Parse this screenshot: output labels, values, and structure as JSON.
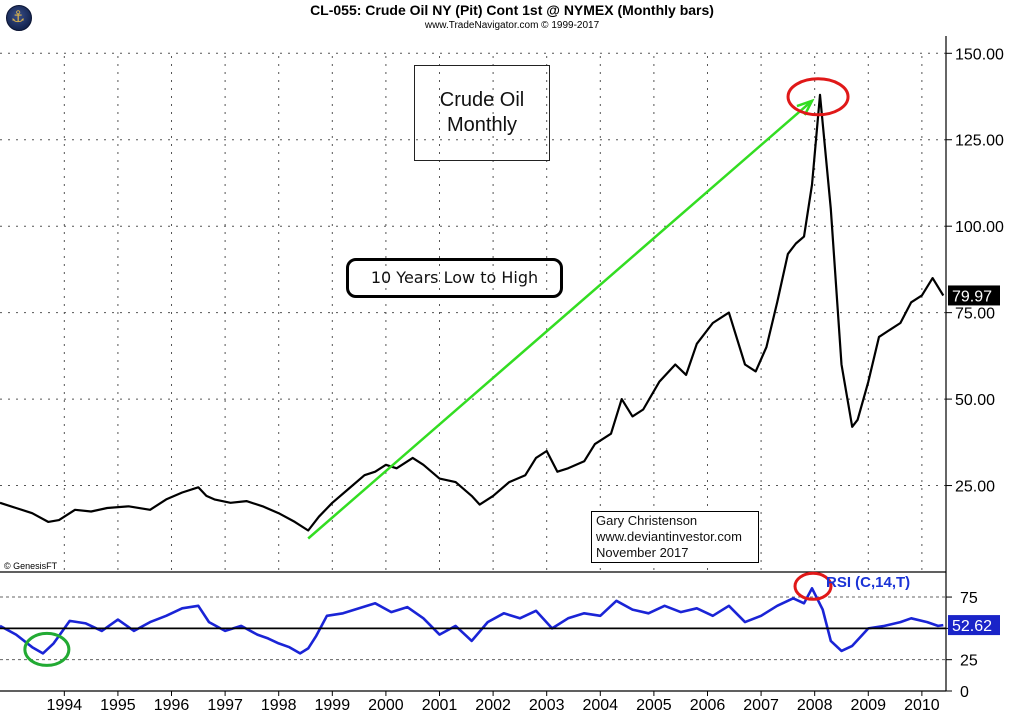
{
  "header": {
    "title": "CL-055:  Crude Oil NY (Pit) Cont 1st @ NYMEX  (Monthly bars)",
    "subtitle": "www.TradeNavigator.com © 1999-2017"
  },
  "annotations": {
    "info_box_line1": "Crude Oil",
    "info_box_line2": "Monthly",
    "label_box": "10 Years Low to High",
    "credit_line1": "Gary Christenson",
    "credit_line2": "www.deviantinvestor.com",
    "credit_line3": "November 2017",
    "genesis": "© GenesisFT",
    "rsi_label": "RSI (C,14,T)"
  },
  "colors": {
    "price_line": "#000000",
    "rsi_line": "#1a24d6",
    "arrow": "#33dd22",
    "red_circle": "#e01818",
    "green_circle": "#22aa33"
  },
  "chart_data": [
    {
      "type": "line",
      "name": "price",
      "ylim": [
        0,
        155
      ],
      "xlim": [
        1993.0,
        2010.65
      ],
      "yticks": [
        "150.00",
        "125.00",
        "100.00",
        "75.00",
        "50.00",
        "25.00"
      ],
      "ytick_values": [
        150,
        125,
        100,
        75,
        50,
        25
      ],
      "last_value_label": "79.97",
      "last_value": 79.97,
      "x": [
        1993.0,
        1993.3,
        1993.6,
        1993.9,
        1994.1,
        1994.4,
        1994.7,
        1995.0,
        1995.4,
        1995.8,
        1996.1,
        1996.4,
        1996.7,
        1996.85,
        1997.0,
        1997.3,
        1997.6,
        1997.9,
        1998.2,
        1998.5,
        1998.75,
        1998.95,
        1999.2,
        1999.5,
        1999.8,
        2000.0,
        2000.2,
        2000.4,
        2000.7,
        2000.9,
        2001.2,
        2001.5,
        2001.8,
        2001.95,
        2002.2,
        2002.5,
        2002.8,
        2003.0,
        2003.2,
        2003.4,
        2003.6,
        2003.9,
        2004.1,
        2004.4,
        2004.6,
        2004.8,
        2005.0,
        2005.3,
        2005.6,
        2005.8,
        2006.0,
        2006.3,
        2006.6,
        2006.9,
        2007.1,
        2007.3,
        2007.5,
        2007.7,
        2007.85,
        2008.0,
        2008.15,
        2008.3,
        2008.5,
        2008.7,
        2008.9,
        2009.0,
        2009.2,
        2009.4,
        2009.6,
        2009.8,
        2010.0,
        2010.2,
        2010.4,
        2010.6
      ],
      "y": [
        20,
        18.5,
        17,
        14.5,
        15,
        18,
        17.5,
        18.5,
        19,
        18,
        21,
        23,
        24.5,
        22,
        21,
        20,
        20.5,
        19,
        17,
        14.5,
        12,
        16,
        20,
        24,
        28,
        29,
        31,
        30,
        33,
        31,
        27,
        26,
        22,
        19.5,
        22,
        26,
        28,
        33,
        35,
        29,
        30,
        32,
        37,
        40,
        50,
        45,
        47,
        55,
        60,
        57,
        66,
        72,
        75,
        60,
        58,
        65,
        78,
        92,
        95,
        97,
        112,
        138,
        105,
        60,
        42,
        44,
        55,
        68,
        70,
        72,
        78,
        80,
        85,
        79.97
      ]
    },
    {
      "type": "line",
      "name": "rsi",
      "ylim": [
        0,
        95
      ],
      "xlim": [
        1993.0,
        2010.65
      ],
      "yticks": [
        "75",
        "50",
        "25",
        "0"
      ],
      "ytick_values": [
        75,
        50,
        25,
        0
      ],
      "last_value_label": "52.62",
      "last_value": 52.62,
      "x": [
        1993.0,
        1993.3,
        1993.6,
        1993.8,
        1994.0,
        1994.3,
        1994.6,
        1994.9,
        1995.2,
        1995.5,
        1995.8,
        1996.1,
        1996.4,
        1996.7,
        1996.9,
        1997.2,
        1997.5,
        1997.8,
        1998.0,
        1998.2,
        1998.4,
        1998.6,
        1998.75,
        1998.9,
        1999.1,
        1999.4,
        1999.7,
        2000.0,
        2000.3,
        2000.6,
        2000.9,
        2001.2,
        2001.5,
        2001.8,
        2002.1,
        2002.4,
        2002.7,
        2003.0,
        2003.3,
        2003.6,
        2003.9,
        2004.2,
        2004.5,
        2004.8,
        2005.1,
        2005.4,
        2005.7,
        2006.0,
        2006.3,
        2006.6,
        2006.9,
        2007.2,
        2007.5,
        2007.8,
        2008.0,
        2008.15,
        2008.35,
        2008.5,
        2008.7,
        2008.9,
        2009.2,
        2009.5,
        2009.8,
        2010.0,
        2010.3,
        2010.5,
        2010.6
      ],
      "y": [
        52,
        45,
        35,
        30,
        38,
        56,
        54,
        48,
        57,
        48,
        55,
        60,
        66,
        68,
        55,
        48,
        52,
        45,
        42,
        38,
        35,
        30,
        34,
        44,
        60,
        62,
        66,
        70,
        63,
        67,
        58,
        45,
        52,
        40,
        55,
        62,
        58,
        64,
        50,
        58,
        62,
        60,
        72,
        65,
        62,
        68,
        63,
        66,
        60,
        68,
        55,
        60,
        68,
        74,
        70,
        82,
        65,
        40,
        32,
        36,
        50,
        52,
        55,
        58,
        55,
        52,
        52.62
      ]
    }
  ],
  "x_axis": {
    "ticks": [
      "1994",
      "1995",
      "1996",
      "1997",
      "1998",
      "1999",
      "2000",
      "2001",
      "2002",
      "2003",
      "2004",
      "2005",
      "2006",
      "2007",
      "2008",
      "2009",
      "2010"
    ],
    "tick_values": [
      1994.2,
      1995.2,
      1996.2,
      1997.2,
      1998.2,
      1999.2,
      2000.2,
      2001.2,
      2002.2,
      2003.2,
      2004.2,
      2005.2,
      2006.2,
      2007.2,
      2008.2,
      2009.2,
      2010.2
    ]
  }
}
